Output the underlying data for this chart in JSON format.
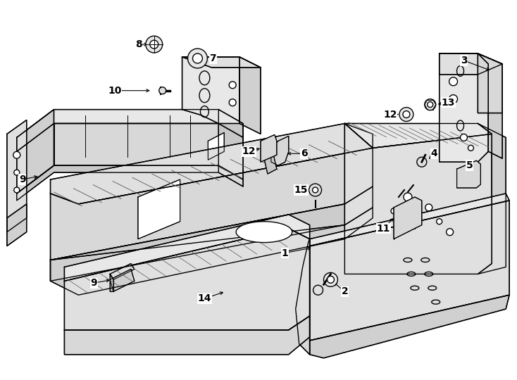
{
  "background_color": "#ffffff",
  "line_color": "#000000",
  "lw": 1.0,
  "fig_width": 7.34,
  "fig_height": 5.4,
  "dpi": 100
}
